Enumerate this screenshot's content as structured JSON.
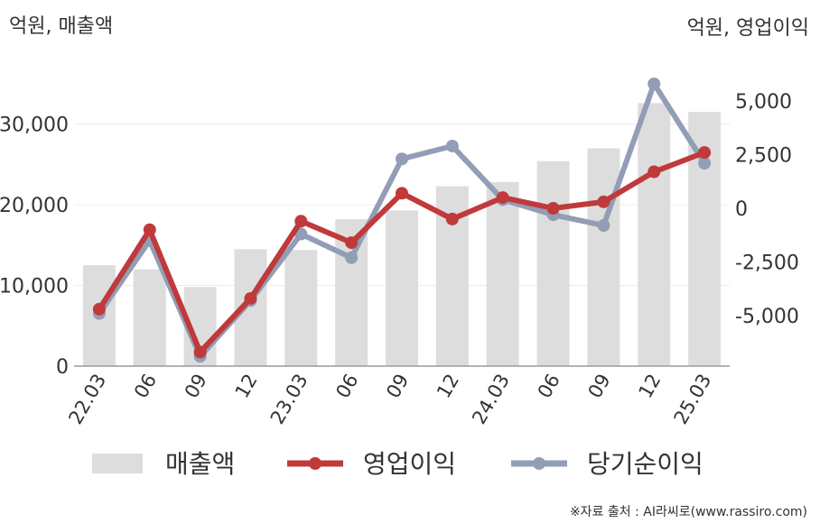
{
  "chart_data": {
    "type": "bar+line",
    "left_axis_title": "억원, 매출액",
    "right_axis_title": "억원, 영업이익",
    "categories": [
      "22.03",
      "06",
      "09",
      "12",
      "23.03",
      "06",
      "09",
      "12",
      "24.03",
      "06",
      "09",
      "12",
      "25.03"
    ],
    "series": [
      {
        "name": "매출액",
        "type": "bar",
        "axis": "left",
        "color": "#dddddd",
        "values": [
          12500,
          12000,
          9800,
          14500,
          14400,
          18200,
          19300,
          22300,
          22800,
          25400,
          27000,
          32600,
          31500
        ]
      },
      {
        "name": "영업이익",
        "type": "line",
        "axis": "right",
        "color": "#c0393b",
        "values": [
          -4700,
          -1000,
          -6700,
          -4200,
          -600,
          -1600,
          700,
          -500,
          500,
          0,
          300,
          1700,
          2600
        ]
      },
      {
        "name": "당기순이익",
        "type": "line",
        "axis": "right",
        "color": "#929db6",
        "values": [
          -4900,
          -1500,
          -6900,
          -4300,
          -1200,
          -2300,
          2300,
          2900,
          400,
          -300,
          -800,
          5800,
          2100
        ]
      }
    ],
    "left_axis": {
      "min": 0,
      "max": 38000,
      "ticks": [
        0,
        10000,
        20000,
        30000
      ],
      "tick_labels": [
        "0",
        "10,000",
        "20,000",
        "30,000"
      ]
    },
    "right_axis": {
      "min": -7400,
      "max": 7000,
      "ticks": [
        -5000,
        -2500,
        0,
        2500,
        5000
      ],
      "tick_labels": [
        "-5,000",
        "-2,500",
        "0",
        "2,500",
        "5,000"
      ]
    },
    "grid": true,
    "legend_position": "bottom"
  },
  "source_text": "※자료 출처 : AI라씨로(www.rassiro.com)"
}
